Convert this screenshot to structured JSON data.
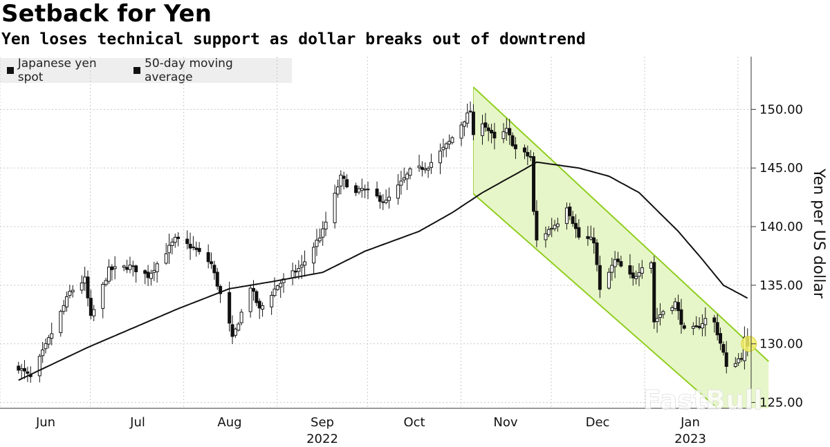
{
  "title": "Setback for Yen",
  "subtitle": "Yen loses technical support as dollar breaks out of downtrend",
  "watermark": "FastBull",
  "chart_data": {
    "type": "candlestick",
    "ylabel": "Yen per US dollar",
    "ylim": [
      124.5,
      154.5
    ],
    "y_ticks": [
      "150.00",
      "145.00",
      "140.00",
      "135.00",
      "130.00",
      "125.00"
    ],
    "x_ticks": [
      {
        "label": "Jun",
        "year": ""
      },
      {
        "label": "Jul",
        "year": ""
      },
      {
        "label": "Aug",
        "year": ""
      },
      {
        "label": "Sep",
        "year": "2022"
      },
      {
        "label": "Oct",
        "year": ""
      },
      {
        "label": "Nov",
        "year": ""
      },
      {
        "label": "Dec",
        "year": ""
      },
      {
        "label": "Jan",
        "year": "2023"
      }
    ],
    "legend": [
      {
        "name": "Japanese yen spot",
        "color": "#111111"
      },
      {
        "name": "50-day moving average",
        "color": "#111111"
      }
    ],
    "colors": {
      "channel_fill": "#e4f5c2",
      "channel_line": "#8fce1f",
      "highlight": "#f3f06a"
    },
    "x_range": [
      "2022-05-23",
      "2023-01-20"
    ],
    "spot_anchors": [
      [
        "2022-05-23",
        128.0
      ],
      [
        "2022-05-27",
        127.1
      ],
      [
        "2022-06-03",
        130.9
      ],
      [
        "2022-06-09",
        134.4
      ],
      [
        "2022-06-14",
        135.5
      ],
      [
        "2022-06-16",
        132.2
      ],
      [
        "2022-06-22",
        136.3
      ],
      [
        "2022-06-29",
        136.6
      ],
      [
        "2022-07-05",
        135.8
      ],
      [
        "2022-07-14",
        138.9
      ],
      [
        "2022-07-20",
        138.2
      ],
      [
        "2022-07-26",
        136.8
      ],
      [
        "2022-08-01",
        131.6
      ],
      [
        "2022-08-02",
        130.4
      ],
      [
        "2022-08-08",
        134.9
      ],
      [
        "2022-08-11",
        132.9
      ],
      [
        "2022-08-17",
        135.0
      ],
      [
        "2022-08-25",
        136.6
      ],
      [
        "2022-09-01",
        139.6
      ],
      [
        "2022-09-07",
        144.2
      ],
      [
        "2022-09-12",
        142.8
      ],
      [
        "2022-09-14",
        143.2
      ],
      [
        "2022-09-22",
        142.1
      ],
      [
        "2022-09-30",
        144.7
      ],
      [
        "2022-10-06",
        145.2
      ],
      [
        "2022-10-13",
        147.2
      ],
      [
        "2022-10-20",
        149.9
      ],
      [
        "2022-10-21",
        147.6
      ],
      [
        "2022-10-24",
        149.0
      ],
      [
        "2022-10-28",
        147.4
      ],
      [
        "2022-11-01",
        148.2
      ],
      [
        "2022-11-04",
        146.6
      ],
      [
        "2022-11-09",
        145.9
      ],
      [
        "2022-11-10",
        141.2
      ],
      [
        "2022-11-11",
        138.8
      ],
      [
        "2022-11-18",
        140.4
      ],
      [
        "2022-11-21",
        141.8
      ],
      [
        "2022-11-25",
        139.1
      ],
      [
        "2022-11-30",
        138.8
      ],
      [
        "2022-12-02",
        134.5
      ],
      [
        "2022-12-07",
        137.1
      ],
      [
        "2022-12-13",
        135.5
      ],
      [
        "2022-12-16",
        136.7
      ],
      [
        "2022-12-19",
        137.0
      ],
      [
        "2022-12-20",
        131.9
      ],
      [
        "2022-12-23",
        132.8
      ],
      [
        "2022-12-27",
        133.5
      ],
      [
        "2022-12-30",
        131.1
      ],
      [
        "2023-01-03",
        131.3
      ],
      [
        "2023-01-06",
        132.1
      ],
      [
        "2023-01-09",
        131.8
      ],
      [
        "2023-01-12",
        129.2
      ],
      [
        "2023-01-13",
        127.9
      ],
      [
        "2023-01-16",
        128.5
      ],
      [
        "2023-01-18",
        128.9
      ],
      [
        "2023-01-19",
        130.4
      ],
      [
        "2023-01-20",
        129.6
      ]
    ],
    "ma_anchors": [
      [
        "2022-05-23",
        126.9
      ],
      [
        "2022-06-15",
        129.7
      ],
      [
        "2022-07-15",
        133.0
      ],
      [
        "2022-08-01",
        134.7
      ],
      [
        "2022-08-15",
        135.3
      ],
      [
        "2022-09-01",
        136.1
      ],
      [
        "2022-09-15",
        137.9
      ],
      [
        "2022-10-03",
        139.6
      ],
      [
        "2022-10-14",
        141.2
      ],
      [
        "2022-10-24",
        142.9
      ],
      [
        "2022-11-07",
        144.9
      ],
      [
        "2022-11-11",
        145.5
      ],
      [
        "2022-11-25",
        145.0
      ],
      [
        "2022-12-05",
        144.3
      ],
      [
        "2022-12-15",
        142.9
      ],
      [
        "2022-12-28",
        139.6
      ],
      [
        "2023-01-05",
        137.2
      ],
      [
        "2023-01-12",
        135.0
      ],
      [
        "2023-01-20",
        133.9
      ]
    ],
    "channel": {
      "upper": [
        [
          "2022-10-21",
          151.9
        ],
        [
          "2023-01-27",
          128.5
        ]
      ],
      "lower": [
        [
          "2022-10-21",
          142.8
        ],
        [
          "2023-01-10",
          124.5
        ]
      ]
    },
    "last_point": [
      "2023-01-20",
      130.0
    ]
  }
}
